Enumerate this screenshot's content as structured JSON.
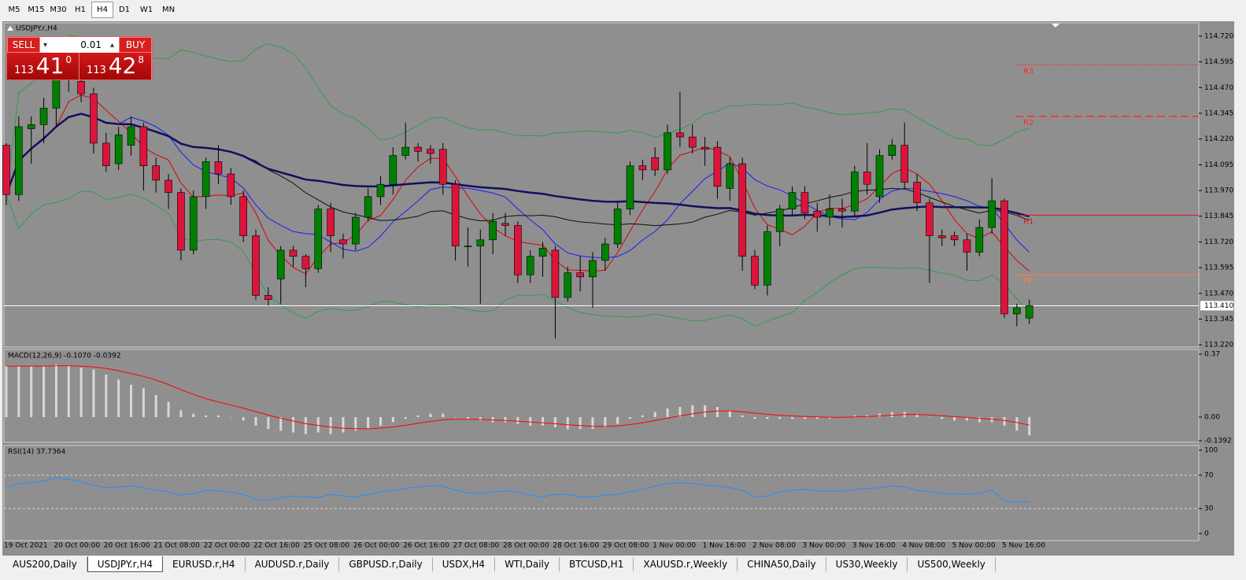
{
  "toolbar": {
    "timeframes": [
      "M5",
      "M15",
      "M30",
      "H1",
      "H4",
      "D1",
      "W1",
      "MN"
    ],
    "active": "H4"
  },
  "trade_panel": {
    "sell": "SELL",
    "buy": "BUY",
    "lot": "0.01",
    "bid": {
      "big_figure": "113",
      "pips": "41",
      "fraction": "0"
    },
    "ask": {
      "big_figure": "113",
      "pips": "42",
      "fraction": "8"
    }
  },
  "tabs": {
    "items": [
      "AUS200,Daily",
      "USDJPY.r,H4",
      "EURUSD.r,H4",
      "AUDUSD.r,Daily",
      "GBPUSD.r,Daily",
      "USDX,H4",
      "WTI,Daily",
      "BTCUSD,H1",
      "XAUUSD.r,Weekly",
      "CHINA50,Daily",
      "US30,Weekly",
      "US500,Weekly"
    ],
    "active": "USDJPY.r,H4"
  },
  "chart_data": {
    "type": "candlestick",
    "symbol_label": "USDJPY.r,H4",
    "categories": [
      "19 Oct 2021",
      null,
      null,
      null,
      "20 Oct 00:00",
      null,
      null,
      null,
      "20 Oct 16:00",
      null,
      null,
      null,
      "21 Oct 08:00",
      null,
      null,
      null,
      "22 Oct 00:00",
      null,
      null,
      null,
      "22 Oct 16:00",
      null,
      null,
      null,
      "25 Oct 08:00",
      null,
      null,
      null,
      "26 Oct 00:00",
      null,
      null,
      null,
      "26 Oct 16:00",
      null,
      null,
      null,
      "27 Oct 08:00",
      null,
      null,
      null,
      "28 Oct 00:00",
      null,
      null,
      null,
      "28 Oct 16:00",
      null,
      null,
      null,
      "29 Oct 08:00",
      null,
      null,
      null,
      "1 Nov 00:00",
      null,
      null,
      null,
      "1 Nov 16:00",
      null,
      null,
      null,
      "2 Nov 08:00",
      null,
      null,
      null,
      "3 Nov 00:00",
      null,
      null,
      null,
      "3 Nov 16:00",
      null,
      null,
      null,
      "4 Nov 08:00",
      null,
      null,
      null,
      "5 Nov 00:00",
      null,
      null,
      null,
      "5 Nov 16:00",
      null,
      null
    ],
    "open": [
      114.19,
      113.95,
      114.27,
      114.29,
      114.37,
      114.51,
      114.5,
      114.44,
      114.2,
      114.1,
      114.19,
      114.28,
      114.09,
      114.02,
      113.96,
      113.68,
      113.94,
      114.11,
      114.05,
      113.94,
      113.75,
      113.46,
      113.54,
      113.68,
      113.65,
      113.59,
      113.88,
      113.73,
      113.71,
      113.84,
      113.94,
      114.0,
      114.14,
      114.18,
      114.17,
      114.17,
      114.0,
      113.7,
      113.7,
      113.73,
      113.81,
      113.8,
      113.56,
      113.65,
      113.68,
      113.45,
      113.57,
      113.55,
      113.63,
      113.71,
      113.88,
      114.09,
      114.13,
      114.07,
      114.25,
      114.23,
      114.18,
      114.18,
      113.98,
      114.1,
      113.65,
      113.51,
      113.77,
      113.88,
      113.96,
      113.87,
      113.84,
      113.88,
      113.87,
      114.06,
      113.94,
      114.14,
      114.19,
      114.01,
      113.91,
      113.75,
      113.75,
      113.73,
      113.67,
      113.79,
      113.92,
      113.37,
      113.35
    ],
    "high": [
      114.2,
      114.33,
      114.33,
      114.42,
      114.58,
      114.62,
      114.53,
      114.47,
      114.25,
      114.28,
      114.33,
      114.3,
      114.13,
      114.05,
      113.98,
      113.97,
      114.13,
      114.19,
      114.08,
      113.97,
      113.78,
      113.5,
      113.7,
      113.7,
      113.66,
      113.9,
      113.91,
      113.76,
      113.86,
      113.98,
      114.04,
      114.18,
      114.3,
      114.2,
      114.19,
      114.2,
      114.02,
      113.79,
      113.78,
      113.86,
      113.86,
      113.82,
      113.68,
      113.72,
      113.7,
      113.6,
      113.65,
      113.67,
      113.74,
      113.91,
      114.11,
      114.12,
      114.18,
      114.29,
      114.45,
      114.29,
      114.23,
      114.21,
      114.13,
      114.13,
      113.68,
      113.8,
      113.9,
      113.99,
      113.99,
      113.91,
      113.95,
      113.93,
      114.09,
      114.2,
      114.17,
      114.22,
      114.3,
      114.05,
      113.93,
      113.78,
      113.77,
      113.76,
      113.83,
      114.03,
      113.93,
      113.42,
      113.44
    ],
    "low": [
      113.9,
      113.92,
      114.1,
      114.2,
      114.28,
      114.45,
      114.4,
      114.15,
      114.06,
      114.07,
      114.14,
      113.97,
      113.96,
      113.88,
      113.63,
      113.66,
      113.88,
      114.0,
      113.9,
      113.72,
      113.44,
      113.41,
      113.42,
      113.6,
      113.5,
      113.57,
      113.67,
      113.64,
      113.68,
      113.82,
      113.9,
      113.95,
      114.12,
      114.11,
      114.1,
      113.95,
      113.63,
      113.6,
      113.42,
      113.66,
      113.75,
      113.52,
      113.52,
      113.55,
      113.25,
      113.43,
      113.48,
      113.4,
      113.58,
      113.69,
      113.85,
      114.02,
      114.04,
      114.05,
      114.18,
      114.15,
      114.09,
      113.93,
      113.92,
      113.58,
      113.49,
      113.46,
      113.7,
      113.85,
      113.83,
      113.77,
      113.8,
      113.79,
      113.84,
      113.95,
      113.91,
      114.12,
      113.98,
      113.87,
      113.52,
      113.7,
      113.7,
      113.58,
      113.65,
      113.76,
      113.35,
      113.31,
      113.32
    ],
    "close": [
      113.95,
      114.28,
      114.29,
      114.37,
      114.51,
      114.56,
      114.44,
      114.2,
      114.09,
      114.24,
      114.28,
      114.09,
      114.02,
      113.96,
      113.68,
      113.94,
      114.11,
      114.05,
      113.94,
      113.75,
      113.46,
      113.44,
      113.68,
      113.65,
      113.59,
      113.88,
      113.75,
      113.71,
      113.84,
      113.94,
      114.0,
      114.14,
      114.18,
      114.16,
      114.15,
      114.0,
      113.7,
      113.7,
      113.73,
      113.82,
      113.8,
      113.56,
      113.65,
      113.69,
      113.45,
      113.57,
      113.55,
      113.63,
      113.71,
      113.88,
      114.09,
      114.07,
      114.07,
      114.25,
      114.23,
      114.18,
      114.17,
      113.99,
      114.1,
      113.65,
      113.51,
      113.77,
      113.88,
      113.96,
      113.86,
      113.84,
      113.88,
      113.87,
      114.06,
      114.0,
      114.14,
      114.19,
      114.01,
      113.91,
      113.75,
      113.74,
      113.73,
      113.67,
      113.79,
      113.92,
      113.37,
      113.4,
      113.41
    ],
    "up_color": "#008000",
    "down_color": "#dc143c",
    "ylim": [
      113.209,
      114.781
    ],
    "yticks": [
      {
        "value": 114.72,
        "label": "114.720"
      },
      114.595,
      {
        "value": 114.47,
        "label": "114.470"
      },
      114.345,
      {
        "value": 114.22,
        "label": "114.220"
      },
      114.095,
      {
        "value": 113.97,
        "label": "113.970"
      },
      113.845,
      {
        "value": 113.72,
        "label": "113.720"
      },
      113.595,
      {
        "value": 113.47,
        "label": "113.470"
      },
      113.345,
      {
        "value": 113.22,
        "label": "113.220"
      }
    ],
    "current_price": {
      "value": 113.41,
      "label": "113.410"
    },
    "levels": [
      {
        "name": "R3",
        "value": 114.58,
        "color": "#ff2a2a",
        "style": "dotted"
      },
      {
        "name": "R2",
        "value": 114.33,
        "color": "#ff2a2a",
        "style": "dashed"
      },
      {
        "name": "R1",
        "value": 113.85,
        "color": "#e0102a",
        "style": "solid"
      },
      {
        "name": "PP",
        "value": 113.56,
        "color": "#ff7f3f",
        "style": "solid"
      }
    ],
    "overlays": [
      {
        "period": 5,
        "color": "#e00000",
        "width": 1
      },
      {
        "period": 10,
        "color": "#1a1aff",
        "width": 1
      },
      {
        "period": 20,
        "color": "#101010",
        "width": 1
      },
      {
        "period": 50,
        "color": "#101060",
        "width": 2.5
      }
    ],
    "bands": {
      "period": 20,
      "color": "#2e9e4e"
    },
    "macd": {
      "label": "MACD(12,26,9) -0.1070 -0.0392",
      "histogram": [
        0.3,
        0.3,
        0.3,
        0.3,
        0.31,
        0.3,
        0.29,
        0.28,
        0.25,
        0.22,
        0.19,
        0.17,
        0.13,
        0.09,
        0.04,
        0.02,
        0.01,
        0.01,
        0.0,
        -0.02,
        -0.05,
        -0.07,
        -0.08,
        -0.09,
        -0.1,
        -0.09,
        -0.1,
        -0.09,
        -0.08,
        -0.07,
        -0.05,
        -0.03,
        -0.01,
        0.01,
        0.02,
        0.02,
        0.0,
        -0.01,
        -0.02,
        -0.03,
        -0.03,
        -0.04,
        -0.05,
        -0.05,
        -0.06,
        -0.07,
        -0.07,
        -0.07,
        -0.06,
        -0.04,
        -0.01,
        0.01,
        0.03,
        0.05,
        0.06,
        0.07,
        0.07,
        0.06,
        0.04,
        0.01,
        -0.01,
        -0.01,
        -0.01,
        -0.01,
        -0.01,
        -0.01,
        -0.01,
        0.0,
        0.01,
        0.01,
        0.02,
        0.03,
        0.03,
        0.02,
        0.0,
        -0.01,
        -0.02,
        -0.02,
        -0.03,
        -0.03,
        -0.05,
        -0.08,
        -0.107
      ],
      "bar_color": "#d8d8d8",
      "signal_color": "#ff0000",
      "ylim": [
        -0.148,
        0.398
      ],
      "yticks": [
        0.37,
        {
          "value": 0,
          "label": "0.00"
        },
        -0.1392
      ]
    },
    "rsi": {
      "label": "RSI(14) 37.7364",
      "values": [
        55,
        60,
        61,
        63,
        67,
        65,
        62,
        58,
        55,
        56,
        57,
        55,
        52,
        50,
        46,
        48,
        52,
        51,
        50,
        47,
        41,
        40,
        43,
        45,
        44,
        43,
        47,
        45,
        44,
        47,
        50,
        52,
        54,
        56,
        57,
        57,
        52,
        49,
        48,
        50,
        51,
        50,
        46,
        44,
        47,
        47,
        44,
        44,
        46,
        47,
        50,
        53,
        57,
        60,
        61,
        60,
        58,
        57,
        55,
        52,
        44,
        45,
        50,
        52,
        53,
        51,
        51,
        51,
        53,
        54,
        55,
        57,
        56,
        52,
        50,
        48,
        48,
        47,
        48,
        52,
        39,
        38,
        37.7364
      ],
      "color": "#1e90ff",
      "ylim": [
        -8.5,
        105.7
      ],
      "yticks": [
        100,
        70,
        30,
        0
      ],
      "levels": [
        70,
        30
      ]
    }
  }
}
